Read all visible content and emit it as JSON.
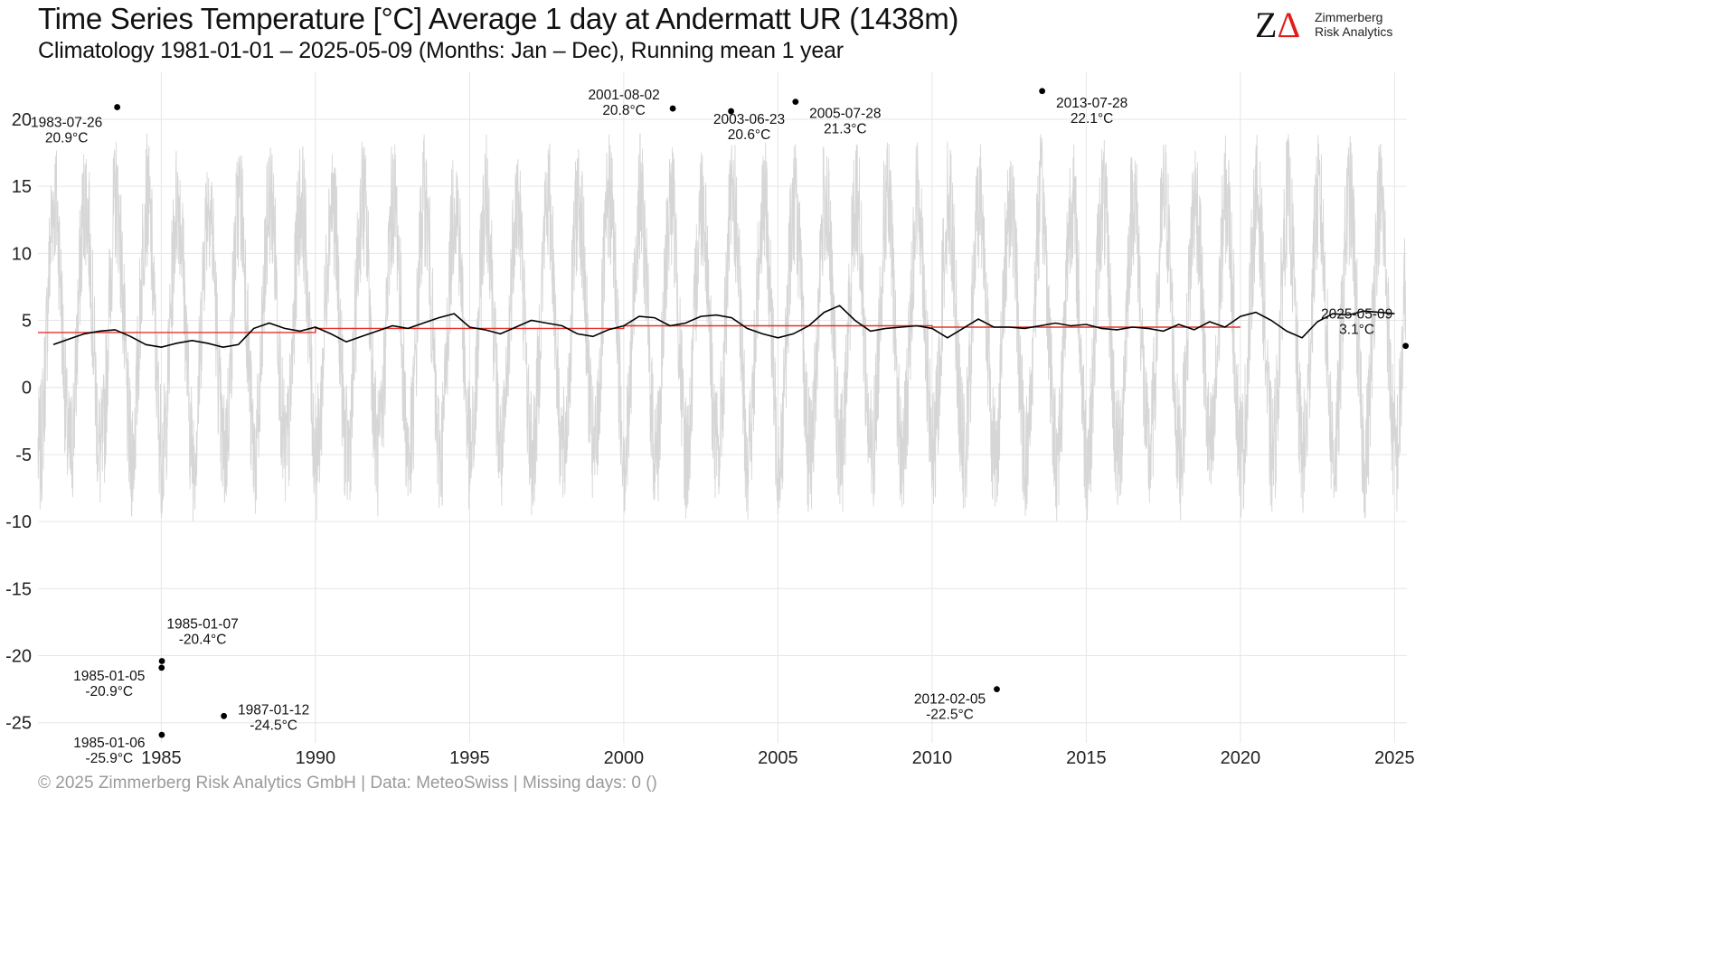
{
  "header": {
    "title": "Time Series Temperature [°C] Average 1 day at Andermatt  UR (1438m)",
    "subtitle": "Climatology 1981-01-01 – 2025-05-09 (Months: Jan – Dec), Running mean 1 year"
  },
  "logo": {
    "mark": "ZΔ",
    "name_line1": "Zimmerberg",
    "name_line2": "Risk Analytics"
  },
  "footer": {
    "text": "©  2025 Zimmerberg Risk Analytics GmbH | Data: MeteoSwiss | Missing days: 0 ()"
  },
  "colors": {
    "daily": "#d6d6d6",
    "running_mean": "#000000",
    "trend": "#e8332a",
    "grid": "#e6e6e6"
  },
  "chart_data": {
    "type": "line",
    "title": "Time Series Temperature [°C] Average 1 day at Andermatt  UR (1438m)",
    "subtitle": "Climatology 1981-01-01 – 2025-05-09 (Months: Jan – Dec), Running mean 1 year",
    "xlim": [
      1981.0,
      2025.4
    ],
    "ylim": [
      -26.5,
      23.5
    ],
    "x_ticks": [
      1985,
      1990,
      1995,
      2000,
      2005,
      2010,
      2015,
      2020,
      2025
    ],
    "y_ticks": [
      20,
      15,
      10,
      5,
      0,
      -5,
      -10,
      -15,
      -20,
      -25
    ],
    "grid": true,
    "series": [
      {
        "key": "running_mean",
        "x": [
          1981.5,
          1982.0,
          1982.5,
          1983.0,
          1983.5,
          1984.0,
          1984.5,
          1985.0,
          1985.5,
          1986.0,
          1986.5,
          1987.0,
          1987.5,
          1988.0,
          1988.5,
          1989.0,
          1989.5,
          1990.0,
          1990.5,
          1991.0,
          1991.5,
          1992.0,
          1992.5,
          1993.0,
          1993.5,
          1994.0,
          1994.5,
          1995.0,
          1995.5,
          1996.0,
          1996.5,
          1997.0,
          1997.5,
          1998.0,
          1998.5,
          1999.0,
          1999.5,
          2000.0,
          2000.5,
          2001.0,
          2001.5,
          2002.0,
          2002.5,
          2003.0,
          2003.5,
          2004.0,
          2004.5,
          2005.0,
          2005.5,
          2006.0,
          2006.5,
          2007.0,
          2007.5,
          2008.0,
          2008.5,
          2009.0,
          2009.5,
          2010.0,
          2010.5,
          2011.0,
          2011.5,
          2012.0,
          2012.5,
          2013.0,
          2013.5,
          2014.0,
          2014.5,
          2015.0,
          2015.5,
          2016.0,
          2016.5,
          2017.0,
          2017.5,
          2018.0,
          2018.5,
          2019.0,
          2019.5,
          2020.0,
          2020.5,
          2021.0,
          2021.5,
          2022.0,
          2022.5,
          2023.0,
          2023.5,
          2024.0,
          2024.5,
          2025.0
        ],
        "y": [
          3.2,
          3.6,
          4.0,
          4.2,
          4.3,
          3.8,
          3.2,
          3.0,
          3.3,
          3.5,
          3.3,
          3.0,
          3.2,
          4.4,
          4.8,
          4.4,
          4.2,
          4.5,
          4.0,
          3.4,
          3.8,
          4.2,
          4.6,
          4.4,
          4.8,
          5.2,
          5.5,
          4.5,
          4.3,
          4.0,
          4.5,
          5.0,
          4.8,
          4.6,
          4.0,
          3.8,
          4.3,
          4.6,
          5.3,
          5.2,
          4.6,
          4.8,
          5.3,
          5.4,
          5.2,
          4.4,
          4.0,
          3.7,
          4.0,
          4.6,
          5.6,
          6.1,
          5.0,
          4.2,
          4.4,
          4.5,
          4.6,
          4.4,
          3.7,
          4.4,
          5.1,
          4.5,
          4.5,
          4.4,
          4.6,
          4.8,
          4.6,
          4.7,
          4.4,
          4.3,
          4.5,
          4.4,
          4.2,
          4.7,
          4.3,
          4.9,
          4.5,
          5.3,
          5.6,
          5.0,
          4.2,
          3.7,
          4.9,
          5.5,
          5.4,
          5.7,
          5.6,
          5.5
        ]
      },
      {
        "key": "trend",
        "x": [
          1981.0,
          1990.0,
          1990.0,
          2000.0,
          2000.0,
          2010.0,
          2010.0,
          2020.0
        ],
        "y": [
          4.1,
          4.1,
          4.4,
          4.4,
          4.6,
          4.6,
          4.5,
          4.5
        ]
      }
    ],
    "annotations": [
      {
        "date": "1983-07-26",
        "x": 1983.57,
        "value": 20.9,
        "label": "20.9°C",
        "anchor": "left"
      },
      {
        "date": "2001-08-02",
        "x": 2001.59,
        "value": 20.8,
        "label": "20.8°C",
        "anchor": "left"
      },
      {
        "date": "2003-06-23",
        "x": 2003.48,
        "value": 20.6,
        "label": "20.6°C",
        "anchor": "below"
      },
      {
        "date": "2005-07-28",
        "x": 2005.57,
        "value": 21.3,
        "label": "21.3°C",
        "anchor": "below-right"
      },
      {
        "date": "2013-07-28",
        "x": 2013.57,
        "value": 22.1,
        "label": "22.1°C",
        "anchor": "below-right"
      },
      {
        "date": "2025-05-09",
        "x": 2025.36,
        "value": 3.1,
        "label": "3.1°C",
        "anchor": "left"
      },
      {
        "date": "1985-01-07",
        "x": 1985.02,
        "value": -20.4,
        "label": "-20.4°C",
        "anchor": "above-right"
      },
      {
        "date": "1985-01-05",
        "x": 1985.01,
        "value": -20.9,
        "label": "-20.9°C",
        "anchor": "left"
      },
      {
        "date": "1985-01-06",
        "x": 1985.015,
        "value": -25.9,
        "label": "-25.9°C",
        "anchor": "left"
      },
      {
        "date": "1987-01-12",
        "x": 1987.03,
        "value": -24.5,
        "label": "-24.5°C",
        "anchor": "right"
      },
      {
        "date": "2012-02-05",
        "x": 2012.1,
        "value": -22.5,
        "label": "-22.5°C",
        "anchor": "below-left"
      }
    ]
  }
}
